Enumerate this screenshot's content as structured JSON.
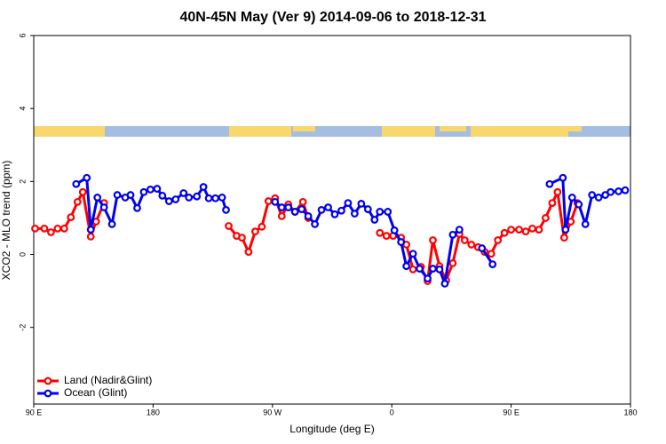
{
  "chart_data": {
    "type": "line",
    "title": "40N-45N May (Ver 9)   2014-09-06 to 2018-12-31",
    "xlabel": "Longitude (deg E)",
    "ylabel": "XCO2 - MLO trend (ppm)",
    "xlim": [
      90,
      540
    ],
    "ylim": [
      -4.1,
      6
    ],
    "xticks": [
      {
        "value": 90,
        "label": "90 E"
      },
      180,
      {
        "value": 270,
        "label": "90 W"
      },
      {
        "value": 360,
        "label": "0"
      },
      {
        "value": 450,
        "label": "90 E"
      },
      {
        "value": 540,
        "label": "180"
      }
    ],
    "yticks": [
      -2,
      0,
      2,
      4,
      6
    ],
    "legend": "bottom-left",
    "series": [
      {
        "name": "Land (Nadir&Glint)",
        "color": "#ff0000",
        "x": [
          91,
          98,
          103,
          108,
          113,
          118,
          123,
          127,
          133,
          137,
          143,
          null,
          237,
          243,
          247,
          252,
          257,
          262,
          267,
          272,
          277,
          282,
          287,
          293,
          297,
          null,
          351,
          356,
          361,
          367,
          371,
          376,
          382,
          387,
          391,
          396,
          401,
          406,
          411,
          415,
          420,
          425,
          430,
          435,
          440,
          445,
          450,
          456,
          461,
          466,
          471,
          476,
          481,
          485,
          490,
          495,
          500
        ],
        "values": [
          0.71,
          0.71,
          0.61,
          0.71,
          0.71,
          1.02,
          1.44,
          1.71,
          0.49,
          0.9,
          1.41,
          null,
          0.78,
          0.51,
          0.46,
          0.07,
          0.63,
          0.76,
          1.46,
          1.54,
          1.05,
          1.37,
          1.17,
          1.44,
          1.0,
          null,
          0.59,
          0.51,
          0.51,
          0.46,
          0.27,
          -0.41,
          -0.34,
          -0.73,
          0.39,
          -0.32,
          -0.71,
          -0.24,
          0.56,
          0.39,
          0.27,
          0.2,
          0.07,
          0.02,
          0.39,
          0.59,
          0.68,
          0.68,
          0.63,
          0.71,
          0.68,
          1.0,
          1.41,
          1.71,
          0.46,
          0.9,
          1.41
        ]
      },
      {
        "name": "Ocean (Glint)",
        "color": "#0000ee",
        "x": [
          122,
          130,
          133,
          138,
          143,
          149,
          153,
          159,
          163,
          168,
          173,
          178,
          183,
          187,
          192,
          197,
          203,
          207,
          213,
          218,
          222,
          227,
          232,
          235,
          null,
          272,
          277,
          282,
          287,
          292,
          297,
          302,
          307,
          312,
          317,
          322,
          327,
          332,
          337,
          342,
          347,
          351,
          357,
          362,
          367,
          371,
          376,
          381,
          387,
          391,
          396,
          400,
          406,
          411,
          null,
          428,
          436,
          null,
          479,
          489,
          491,
          496,
          501,
          506,
          511,
          516,
          521,
          525,
          531,
          536
        ],
        "values": [
          1.93,
          2.1,
          0.68,
          1.56,
          1.29,
          0.83,
          1.63,
          1.56,
          1.63,
          1.27,
          1.71,
          1.78,
          1.8,
          1.61,
          1.46,
          1.51,
          1.68,
          1.56,
          1.59,
          1.85,
          1.54,
          1.54,
          1.56,
          1.22,
          null,
          1.44,
          1.29,
          1.29,
          1.17,
          1.24,
          1.05,
          0.83,
          1.22,
          1.29,
          1.1,
          1.2,
          1.41,
          1.12,
          1.39,
          1.24,
          0.95,
          1.17,
          1.17,
          0.66,
          0.34,
          -0.32,
          0.02,
          -0.39,
          -0.66,
          -0.39,
          -0.41,
          -0.8,
          0.54,
          0.68,
          null,
          0.17,
          -0.27,
          null,
          1.93,
          2.1,
          0.68,
          1.56,
          1.37,
          0.83,
          1.63,
          1.56,
          1.63,
          1.71,
          1.73,
          1.76
        ]
      }
    ]
  }
}
